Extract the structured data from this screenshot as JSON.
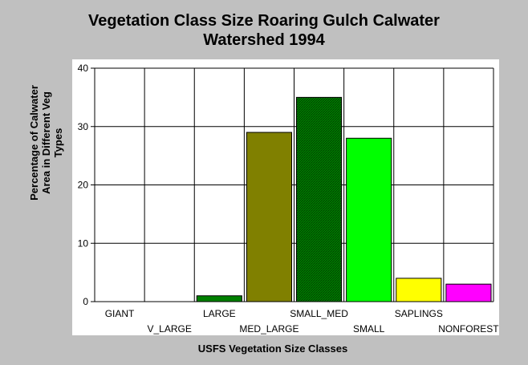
{
  "chart_data": {
    "type": "bar",
    "title": [
      "Vegetation Class Size Roaring Gulch Calwater",
      "Watershed 1994"
    ],
    "xlabel": "USFS Vegetation Size Classes",
    "ylabel": "Percentage of Calwater\nArea in Different Veg\nTypes",
    "ylim": [
      0,
      40
    ],
    "yticks": [
      0,
      10,
      20,
      30,
      40
    ],
    "grid": true,
    "categories": [
      "GIANT",
      "V_LARGE",
      "LARGE",
      "MED_LARGE",
      "SMALL_MED",
      "SMALL",
      "SAPLINGS",
      "NONFOREST"
    ],
    "values": [
      0,
      0,
      1,
      29,
      35,
      28,
      4,
      3
    ],
    "colors": [
      "#008000",
      "#008000",
      "#008000",
      "#808000",
      "#008000",
      "#00ff00",
      "#ffff00",
      "#ff00ff"
    ],
    "hatched": [
      false,
      false,
      false,
      false,
      true,
      false,
      false,
      false
    ]
  }
}
